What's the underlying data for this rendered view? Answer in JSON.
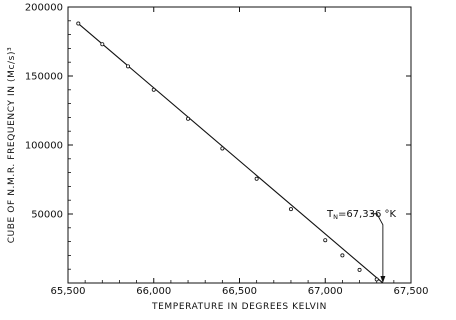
{
  "chart_data": {
    "type": "line",
    "title": "",
    "xlabel": "TEMPERATURE IN DEGREES KELVIN",
    "ylabel": "CUBE OF N.M.R. FREQUENCY IN (Mc/s)³",
    "xlim": [
      65500,
      67500
    ],
    "ylim": [
      0,
      200000
    ],
    "x_ticks": [
      65500,
      66000,
      66500,
      67000,
      67500
    ],
    "x_tick_labels": [
      "65,500",
      "66,000",
      "66,500",
      "67,000",
      "67,500"
    ],
    "y_ticks": [
      50000,
      100000,
      150000,
      200000
    ],
    "y_tick_labels": [
      "50000",
      "100000",
      "150000",
      "200000"
    ],
    "grid": false,
    "series": [
      {
        "x": [
          65560,
          65700,
          65850,
          66000,
          66200,
          66400,
          66600,
          66800,
          67000,
          67100,
          67200,
          67300,
          67336
        ],
        "y": [
          188000,
          173000,
          157000,
          140000,
          119000,
          97500,
          75500,
          53500,
          31000,
          20000,
          9500,
          2600,
          0
        ]
      }
    ],
    "annotations": [
      {
        "text_main": "T",
        "text_sub": "N",
        "text_rest": "=67,336 °K",
        "x": 67336,
        "y": 0,
        "label_x": 67010,
        "label_y": 48000
      }
    ]
  }
}
